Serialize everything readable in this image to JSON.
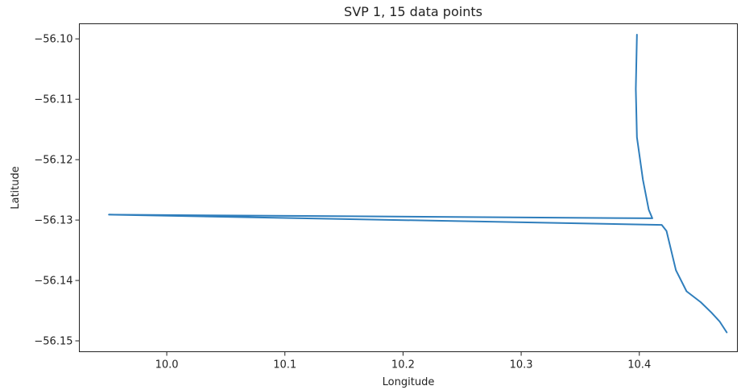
{
  "chart_data": {
    "type": "line",
    "title": "SVP 1, 15 data points",
    "xlabel": "Longitude",
    "ylabel": "Latitude",
    "xlim": [
      9.926,
      10.483
    ],
    "ylim": [
      -56.1518,
      -56.0975
    ],
    "xticks": [
      10.0,
      10.1,
      10.2,
      10.3,
      10.4
    ],
    "xtick_labels": [
      "10.0",
      "10.1",
      "10.2",
      "10.3",
      "10.4"
    ],
    "yticks": [
      -56.1,
      -56.11,
      -56.12,
      -56.13,
      -56.14,
      -56.15
    ],
    "ytick_labels": [
      "−56.10",
      "−56.11",
      "−56.12",
      "−56.13",
      "−56.14",
      "−56.15"
    ],
    "grid": false,
    "series": [
      {
        "color": "#2f7ebc",
        "x": [
          10.398,
          10.397,
          10.398,
          10.403,
          10.408,
          10.411,
          9.951,
          10.419,
          10.423,
          10.431,
          10.44,
          10.452,
          10.461,
          10.468,
          10.474
        ],
        "y": [
          -56.0993,
          -56.1083,
          -56.1163,
          -56.1233,
          -56.1283,
          -56.1297,
          -56.1291,
          -56.1308,
          -56.1318,
          -56.1383,
          -56.1418,
          -56.1436,
          -56.1453,
          -56.1468,
          -56.1486
        ]
      }
    ]
  }
}
